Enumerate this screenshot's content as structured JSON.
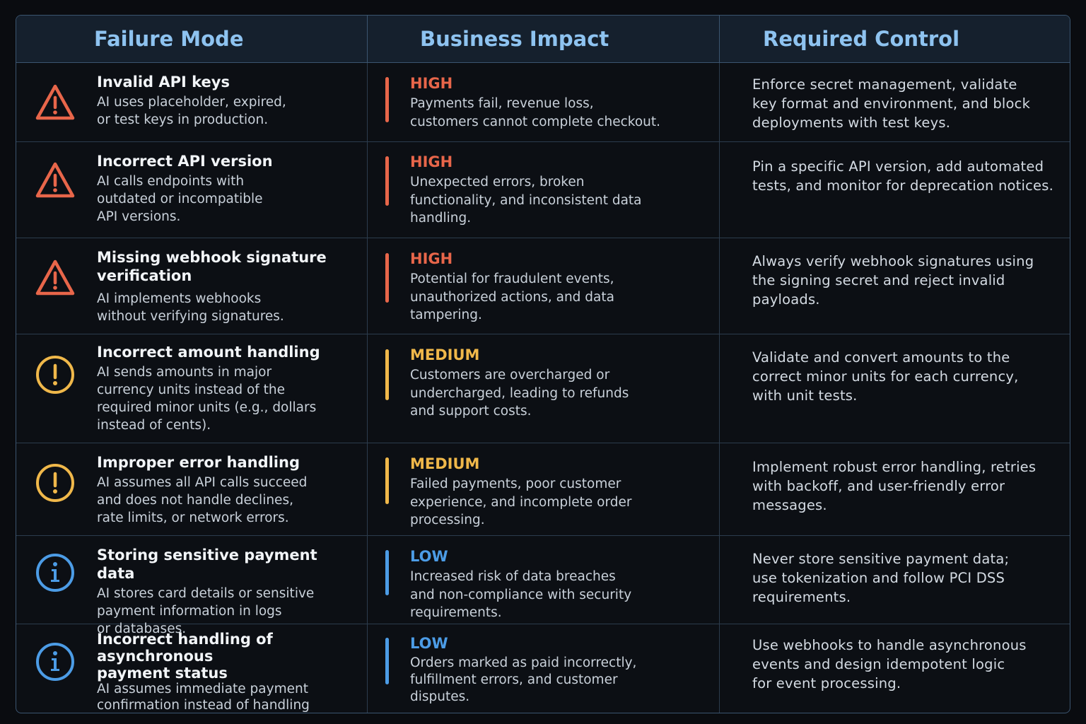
{
  "headers": {
    "failure_mode": "Failure Mode",
    "business_impact": "Business Impact",
    "required_control": "Required Control"
  },
  "colors": {
    "high": "#e8664a",
    "medium": "#f0b84a",
    "low": "#4c9ce6",
    "header_text": "#8ec3f0",
    "border": "#3b5570"
  },
  "rows": [
    {
      "icon": "warning-triangle-icon",
      "title": "Invalid API keys",
      "desc": "AI uses placeholder, expired,\nor test keys in production.",
      "level": "HIGH",
      "impact": "Payments fail, revenue loss,\ncustomers cannot complete checkout.",
      "control": "Enforce secret management, validate\nkey format and environment, and block\ndeployments with test keys."
    },
    {
      "icon": "warning-triangle-icon",
      "title": "Incorrect API version",
      "desc": "AI calls endpoints with\noutdated or incompatible\nAPI versions.",
      "level": "HIGH",
      "impact": "Unexpected errors, broken\nfunctionality, and inconsistent data\nhandling.",
      "control": "Pin a specific API version, add automated\ntests, and monitor for deprecation notices."
    },
    {
      "icon": "warning-triangle-icon",
      "title": "Missing webhook signature\nverification",
      "desc": "AI implements webhooks\nwithout verifying signatures.",
      "level": "HIGH",
      "impact": "Potential for fraudulent events,\nunauthorized actions, and data\ntampering.",
      "control": "Always verify webhook signatures using\nthe signing secret and reject invalid\npayloads."
    },
    {
      "icon": "exclamation-circle-icon",
      "title": "Incorrect amount handling",
      "desc": "AI sends amounts in major\ncurrency units instead of the\nrequired minor units (e.g., dollars\ninstead of cents).",
      "level": "MEDIUM",
      "impact": "Customers are overcharged or\nundercharged, leading to refunds\nand support costs.",
      "control": "Validate and convert amounts to the\ncorrect minor units for each currency,\nwith unit tests."
    },
    {
      "icon": "exclamation-circle-icon",
      "title": "Improper error handling",
      "desc": "AI assumes all API calls succeed\nand does not handle declines,\nrate limits, or network errors.",
      "level": "MEDIUM",
      "impact": "Failed payments, poor customer\nexperience, and incomplete order\nprocessing.",
      "control": "Implement robust error handling, retries\nwith backoff, and user-friendly error\nmessages."
    },
    {
      "icon": "info-circle-icon",
      "title": "Storing sensitive payment data",
      "desc": "AI stores card details or sensitive\npayment information in logs\nor databases.",
      "level": "LOW",
      "impact": "Increased risk of data breaches\nand non-compliance with security\nrequirements.",
      "control": "Never store sensitive payment data;\nuse tokenization and follow PCI DSS\nrequirements."
    },
    {
      "icon": "info-circle-icon",
      "title": "Incorrect handling of asynchronous\npayment status",
      "desc": "AI assumes immediate payment\nconfirmation instead of handling\nasynchronous events.",
      "level": "LOW",
      "impact": "Orders marked as paid incorrectly,\nfulfillment errors, and customer\ndisputes.",
      "control": "Use webhooks to handle asynchronous\nevents and design idempotent logic\nfor event processing."
    }
  ]
}
